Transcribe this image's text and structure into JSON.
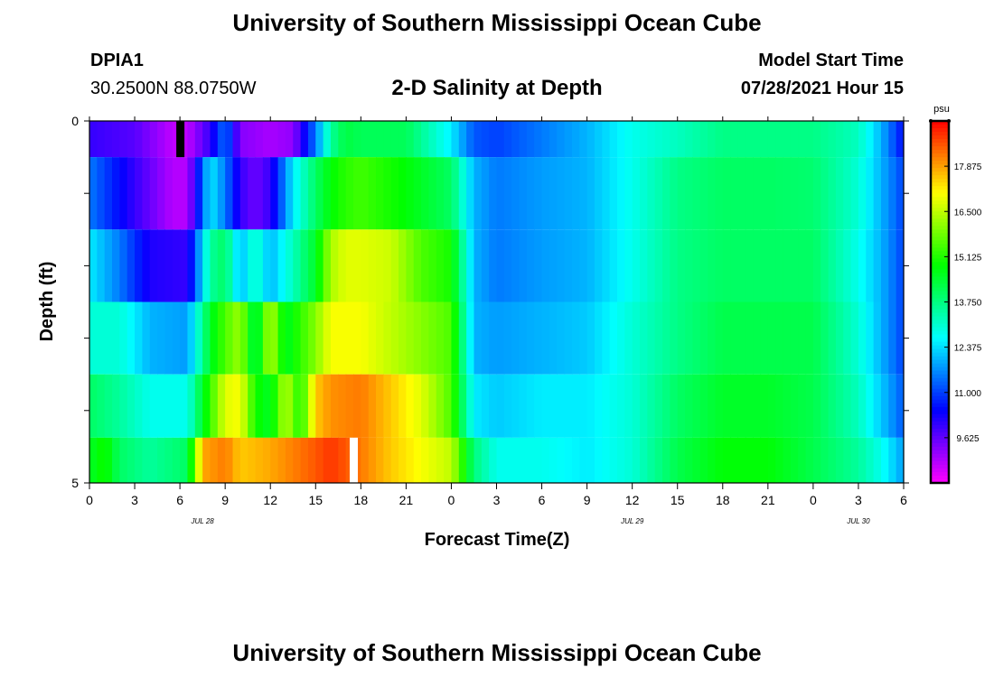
{
  "header": {
    "title": "University of Southern Mississippi Ocean Cube",
    "station_id": "DPIA1",
    "coordinates": "30.2500N  88.0750W",
    "plot_title": "2-D Salinity at Depth",
    "model_start_label": "Model Start Time",
    "model_start_value": "07/28/2021 Hour 15"
  },
  "footer": {
    "title": "University of Southern Mississippi Ocean Cube"
  },
  "chart_data": {
    "type": "heatmap",
    "title": "2-D Salinity at Depth",
    "xlabel": "Forecast Time(Z)",
    "ylabel": "Depth (ft)",
    "units": "psu",
    "x_ticks": [
      "0",
      "3",
      "6",
      "9",
      "12",
      "15",
      "18",
      "21",
      "0",
      "3",
      "6",
      "9",
      "12",
      "15",
      "18",
      "21",
      "0",
      "3",
      "6"
    ],
    "date_labels": [
      {
        "text": "JUL 28",
        "tick_index": 2.5
      },
      {
        "text": "JUL 29",
        "tick_index": 12
      },
      {
        "text": "JUL 30",
        "tick_index": 17
      }
    ],
    "y_range": [
      0,
      5
    ],
    "y_tick_labels": [
      "0",
      "5"
    ],
    "y_minor_ticks": [
      1,
      2,
      3,
      4
    ],
    "x_range_hours": [
      0,
      54
    ],
    "depth_levels_ft": [
      0.25,
      1,
      2,
      3,
      4,
      4.75
    ],
    "colorbar": {
      "min": 8.25,
      "max": 19.25,
      "tick_values": [
        9.625,
        11.0,
        12.375,
        13.75,
        15.125,
        16.5,
        17.875
      ],
      "tick_labels": [
        "9.625",
        "11.000",
        "12.375",
        "13.750",
        "15.125",
        "16.500",
        "17.875"
      ]
    },
    "series": [
      {
        "name": "Depth 0.25 ft",
        "hours": [
          0,
          3,
          5.5,
          6.5,
          8,
          9,
          10,
          12,
          13.5,
          15,
          16,
          17,
          18,
          21,
          24,
          25.5,
          27,
          30,
          33,
          36,
          39,
          42,
          45,
          48,
          51,
          52.5,
          54
        ],
        "values": [
          10.0,
          9.7,
          8.8,
          8.8,
          10.0,
          11.5,
          9.3,
          9.0,
          9.2,
          11.5,
          13.5,
          14.3,
          14.1,
          14.1,
          12.5,
          11.2,
          11.0,
          11.5,
          12.0,
          12.8,
          13.2,
          13.7,
          13.7,
          13.7,
          13.2,
          12.0,
          10.5
        ]
      },
      {
        "name": "Depth 1 ft",
        "hours": [
          0,
          3,
          5.5,
          6.5,
          8,
          9,
          10,
          11,
          12,
          13.5,
          15,
          16,
          17,
          18,
          21,
          24,
          25.5,
          27,
          30,
          33,
          36,
          39,
          42,
          45,
          48,
          51,
          52.5,
          54
        ],
        "values": [
          11.5,
          10.0,
          8.9,
          8.9,
          12.5,
          11.5,
          10.0,
          9.5,
          10.0,
          12.5,
          14.0,
          14.8,
          15.2,
          15.4,
          14.8,
          14.0,
          12.0,
          11.5,
          11.8,
          12.0,
          12.8,
          13.7,
          14.0,
          14.0,
          13.9,
          13.0,
          12.0,
          11.0
        ]
      },
      {
        "name": "Depth 2 ft",
        "hours": [
          0,
          2,
          4,
          6.5,
          8,
          9,
          10,
          11,
          12,
          13,
          15,
          16,
          17,
          18,
          20,
          22,
          24,
          25.5,
          27,
          30,
          33,
          36,
          39,
          42,
          45,
          48,
          51,
          52.5,
          54
        ],
        "values": [
          12.5,
          11.5,
          10.2,
          10.0,
          13.5,
          14.0,
          12.0,
          13.2,
          12.0,
          12.8,
          14.5,
          16.3,
          16.8,
          16.8,
          16.6,
          15.5,
          15.0,
          12.0,
          11.5,
          11.8,
          12.0,
          12.8,
          13.7,
          14.0,
          14.0,
          14.0,
          12.8,
          12.0,
          11.0
        ]
      },
      {
        "name": "Depth 3 ft",
        "hours": [
          0,
          2,
          4,
          6.5,
          8,
          9,
          10,
          11,
          12,
          13,
          15,
          16,
          18,
          20,
          22,
          24,
          25.5,
          27,
          30,
          33,
          36,
          39,
          42,
          45,
          48,
          51,
          52.5,
          54
        ],
        "values": [
          13.0,
          13.0,
          12.0,
          11.8,
          14.5,
          15.5,
          16.2,
          14.0,
          16.5,
          14.5,
          16.0,
          17.0,
          17.0,
          16.5,
          16.0,
          15.5,
          12.0,
          11.8,
          12.0,
          12.2,
          13.0,
          13.7,
          14.2,
          14.2,
          14.2,
          13.0,
          12.0,
          11.0
        ]
      },
      {
        "name": "Depth 4 ft",
        "hours": [
          0,
          2,
          4,
          6.5,
          7.5,
          9,
          10,
          11,
          12,
          13,
          14,
          15,
          16,
          18,
          20,
          22,
          24,
          25.5,
          27,
          30,
          33,
          36,
          39,
          42,
          45,
          48,
          51,
          52.5,
          54
        ],
        "values": [
          14.0,
          13.5,
          12.8,
          12.8,
          14.5,
          16.8,
          17.0,
          15.0,
          14.5,
          16.5,
          15.0,
          17.5,
          18.0,
          18.2,
          17.5,
          16.8,
          15.5,
          12.5,
          12.2,
          12.5,
          12.5,
          13.0,
          14.0,
          14.5,
          14.5,
          14.2,
          13.2,
          12.2,
          11.2
        ]
      },
      {
        "name": "Depth 4.75 ft",
        "hours": [
          0,
          1,
          2,
          4,
          6.5,
          7.5,
          9,
          10,
          12,
          15,
          16,
          18,
          20,
          22,
          24,
          25.5,
          27,
          30,
          33,
          36,
          39,
          42,
          45,
          48,
          51,
          52.5,
          54
        ],
        "values": [
          14.5,
          15.0,
          14.0,
          13.5,
          14.0,
          17.8,
          18.2,
          17.5,
          17.8,
          18.5,
          18.8,
          18.2,
          17.5,
          17.0,
          16.5,
          13.8,
          12.8,
          12.8,
          12.5,
          13.0,
          14.2,
          14.8,
          14.8,
          14.2,
          13.5,
          12.8,
          11.8
        ]
      }
    ],
    "annotations": [
      {
        "kind": "no-data",
        "color": "#000000",
        "hour": 6,
        "depth_row": 0
      },
      {
        "kind": "no-data",
        "color": "#ffffff",
        "hour": 17.5,
        "depth_row": 5
      }
    ]
  }
}
